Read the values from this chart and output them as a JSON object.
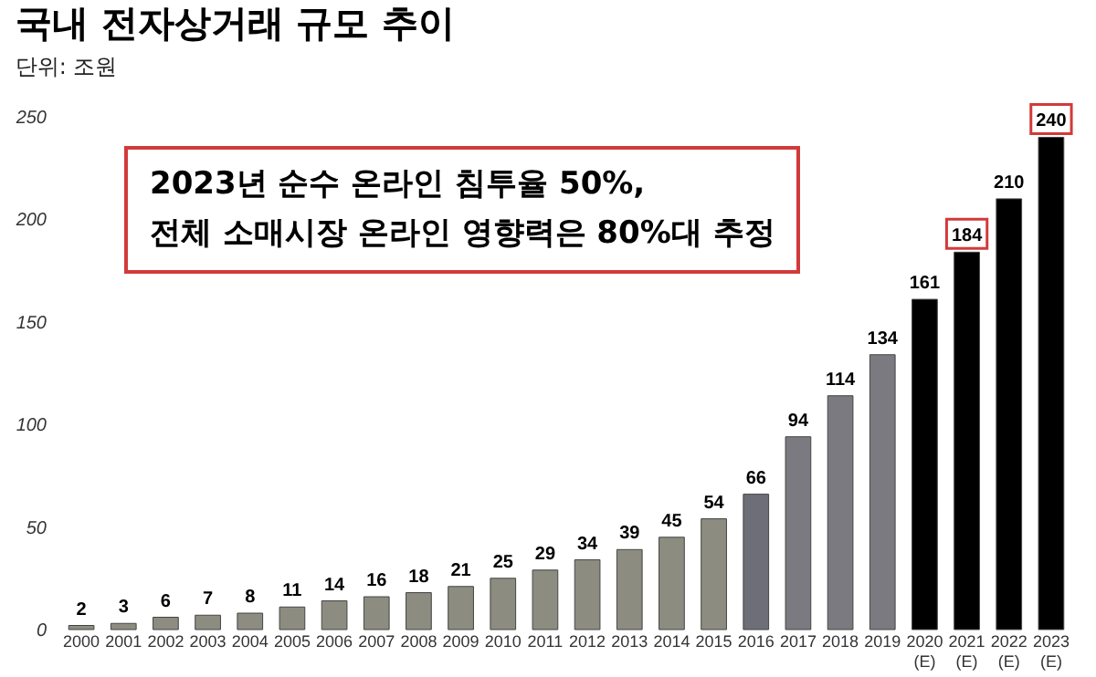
{
  "chart_data": {
    "type": "bar",
    "title": "국내 전자상거래 규모 추이",
    "subtitle": "단위: 조원",
    "annotations": [
      "2023년 순수 온라인 침투율 50%,\n전체 소매시장 온라인 영향력은 80%대 추정"
    ],
    "categories": [
      "2000",
      "2001",
      "2002",
      "2003",
      "2004",
      "2005",
      "2006",
      "2007",
      "2008",
      "2009",
      "2010",
      "2011",
      "2012",
      "2013",
      "2014",
      "2015",
      "2016",
      "2017",
      "2018",
      "2019",
      "2020\n(E)",
      "2021\n(E)",
      "2022\n(E)",
      "2023\n(E)"
    ],
    "values": [
      2,
      3,
      6,
      7,
      8,
      11,
      14,
      16,
      18,
      21,
      25,
      29,
      34,
      39,
      45,
      54,
      66,
      94,
      114,
      134,
      161,
      184,
      210,
      240
    ],
    "colors": [
      "#8c8c80",
      "#8c8c80",
      "#8c8c80",
      "#8c8c80",
      "#8c8c80",
      "#8c8c80",
      "#8c8c80",
      "#8c8c80",
      "#8c8c80",
      "#8c8c80",
      "#8c8c80",
      "#8c8c80",
      "#8c8c80",
      "#8c8c80",
      "#8c8c80",
      "#8c8c80",
      "#6e6e78",
      "#7a7a80",
      "#7a7a80",
      "#7a7a80",
      "#000000",
      "#000000",
      "#000000",
      "#000000"
    ],
    "ylim": [
      0,
      250
    ],
    "yticks": [
      0,
      50,
      100,
      150,
      200,
      250
    ],
    "data_labels": true,
    "grid": false
  }
}
